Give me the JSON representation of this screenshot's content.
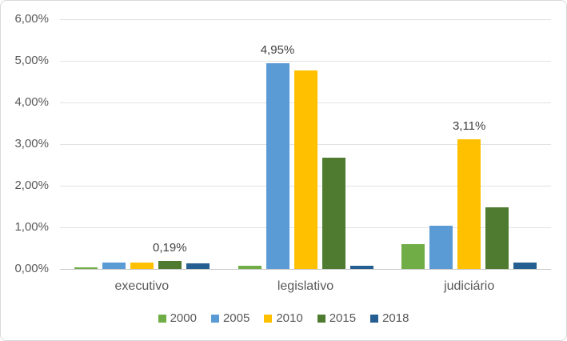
{
  "chart_data": {
    "type": "bar",
    "title": "",
    "categories": [
      "executivo",
      "legislativo",
      "judiciário"
    ],
    "series": [
      {
        "name": "2000",
        "color": "#70AD47",
        "values": [
          0.04,
          0.08,
          0.6
        ]
      },
      {
        "name": "2005",
        "color": "#5B9BD5",
        "values": [
          0.16,
          4.95,
          1.04
        ]
      },
      {
        "name": "2010",
        "color": "#FFC000",
        "values": [
          0.15,
          4.76,
          3.11
        ]
      },
      {
        "name": "2015",
        "color": "#4E7B30",
        "values": [
          0.19,
          2.68,
          1.48
        ]
      },
      {
        "name": "2018",
        "color": "#255E91",
        "values": [
          0.14,
          0.08,
          0.16
        ]
      }
    ],
    "data_labels": [
      {
        "text": "0,19%",
        "category_index": 0,
        "series_index": 3
      },
      {
        "text": "4,95%",
        "category_index": 1,
        "series_index": 1
      },
      {
        "text": "3,11%",
        "category_index": 2,
        "series_index": 2
      }
    ],
    "y_axis": {
      "ticks": [
        "0,00%",
        "1,00%",
        "2,00%",
        "3,00%",
        "4,00%",
        "5,00%",
        "6,00%"
      ],
      "min": 0,
      "max": 6,
      "step": 1,
      "unit": "percent"
    },
    "legend": {
      "position": "bottom",
      "entries": [
        "2000",
        "2005",
        "2010",
        "2015",
        "2018"
      ]
    },
    "grid": true
  },
  "colors": {
    "axis_text": "#595959",
    "data_label_text": "#404040",
    "gridline": "#E2E2E2",
    "axis_line": "#C9C9C9",
    "border": "#D9D9D9",
    "background": "#FFFFFF"
  }
}
